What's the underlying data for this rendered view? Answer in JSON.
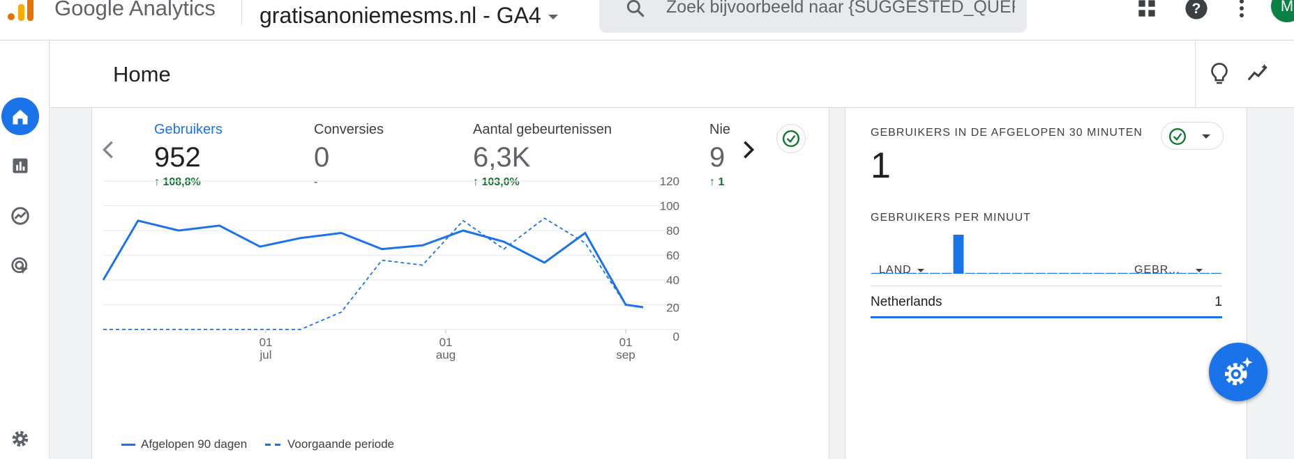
{
  "topbar": {
    "brand": "Google Analytics",
    "property": "gratisanoniemesms.nl - GA4",
    "search_placeholder": "Zoek bijvoorbeeld naar {SUGGESTED_QUER...",
    "avatar_letter": "M",
    "icons": [
      "apps-grid-icon",
      "help-icon",
      "more-vert-icon"
    ]
  },
  "nav": {
    "items": [
      "home-icon",
      "reports-icon",
      "explore-icon",
      "advertising-icon",
      "admin-settings-icon"
    ],
    "accent": "#1a73e8"
  },
  "header": {
    "title": "Home"
  },
  "kpis": [
    {
      "label": "Gebruikers",
      "value": "952",
      "delta": "108,8%",
      "selected": true
    },
    {
      "label": "Conversies",
      "value": "0",
      "delta": "-"
    },
    {
      "label": "Aantal gebeurtenissen",
      "value": "6,3K",
      "delta": "103,0%"
    },
    {
      "label": "Nie",
      "value": "9",
      "delta": "1"
    }
  ],
  "chart_data": {
    "type": "line",
    "x": [
      "2023-06-03",
      "2023-06-09",
      "2023-06-16",
      "2023-06-23",
      "2023-06-30",
      "2023-07-07",
      "2023-07-14",
      "2023-07-21",
      "2023-07-28",
      "2023-08-04",
      "2023-08-11",
      "2023-08-18",
      "2023-08-25",
      "2023-09-01",
      "2023-09-04"
    ],
    "series": [
      {
        "name": "Afgelopen 90 dagen",
        "style": "solid",
        "values": [
          40,
          88,
          80,
          84,
          67,
          74,
          78,
          65,
          68,
          80,
          71,
          54,
          78,
          20,
          18
        ]
      },
      {
        "name": "Voorgaande periode",
        "style": "dashed",
        "values": [
          0,
          0,
          0,
          0,
          0,
          0,
          14,
          56,
          52,
          88,
          65,
          90,
          70,
          20,
          18
        ]
      }
    ],
    "x_ticks": [
      {
        "day": "01",
        "month": "jul"
      },
      {
        "day": "01",
        "month": "aug"
      },
      {
        "day": "01",
        "month": "sep"
      }
    ],
    "y_ticks": [
      "120",
      "100",
      "80",
      "60",
      "40",
      "20",
      "0"
    ],
    "ylim": [
      0,
      120
    ],
    "grid": true,
    "legend_position": "bottom-left",
    "color": "#1a73e8"
  },
  "realtime": {
    "title": "GEBRUIKERS IN DE AFGELOPEN 30 MINUTEN",
    "value": "1",
    "per_minute_label": "GEBRUIKERS PER MINUUT",
    "per_minute_values": [
      0,
      0,
      0,
      0,
      0,
      0,
      0,
      1,
      0,
      0,
      0,
      0,
      0,
      0,
      0,
      0,
      0,
      0,
      0,
      0,
      0,
      0,
      0,
      0,
      0,
      0,
      0,
      0,
      0,
      0
    ],
    "col_country": "LAND",
    "col_users": "GEBR...",
    "rows": [
      {
        "country": "Netherlands",
        "users": "1"
      }
    ]
  }
}
